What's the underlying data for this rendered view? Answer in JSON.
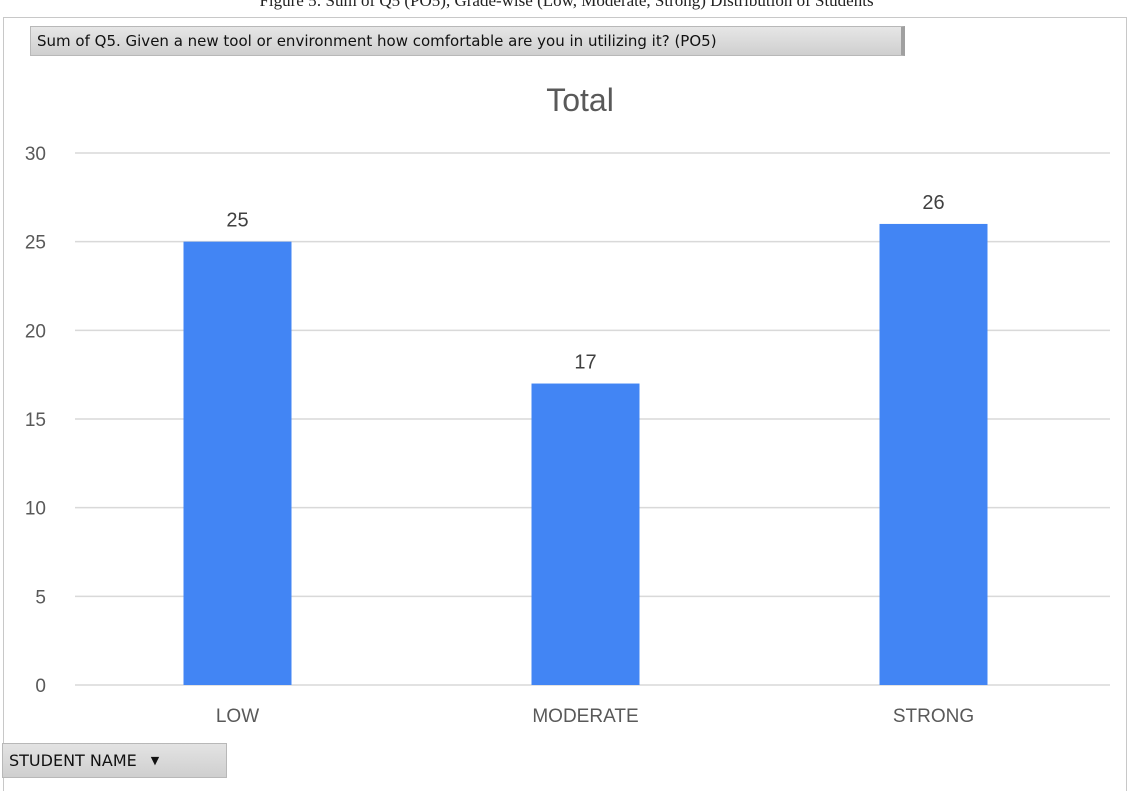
{
  "caption_fragment": "Figure 5: Sum of Q5 (PO5), Grade-wise (Low, Moderate, Strong) Distribution of Students",
  "pivot": {
    "value_field_label": "Sum of Q5. Given a new tool or environment how comfortable are you in utilizing it? (PO5)",
    "axis_field_label": "STUDENT NAME",
    "axis_field_icon": "dropdown-arrow-icon"
  },
  "chart_data": {
    "type": "bar",
    "title": "Total",
    "categories": [
      "LOW",
      "MODERATE",
      "STRONG"
    ],
    "values": [
      25,
      17,
      26
    ],
    "data_labels": [
      "25",
      "17",
      "26"
    ],
    "ylim": [
      0,
      30
    ],
    "yticks": [
      0,
      5,
      10,
      15,
      20,
      25,
      30
    ],
    "grid": true,
    "legend": "none",
    "xlabel": "",
    "ylabel": "",
    "bar_color": "#4285f4",
    "grid_color": "#d9d9d9"
  }
}
